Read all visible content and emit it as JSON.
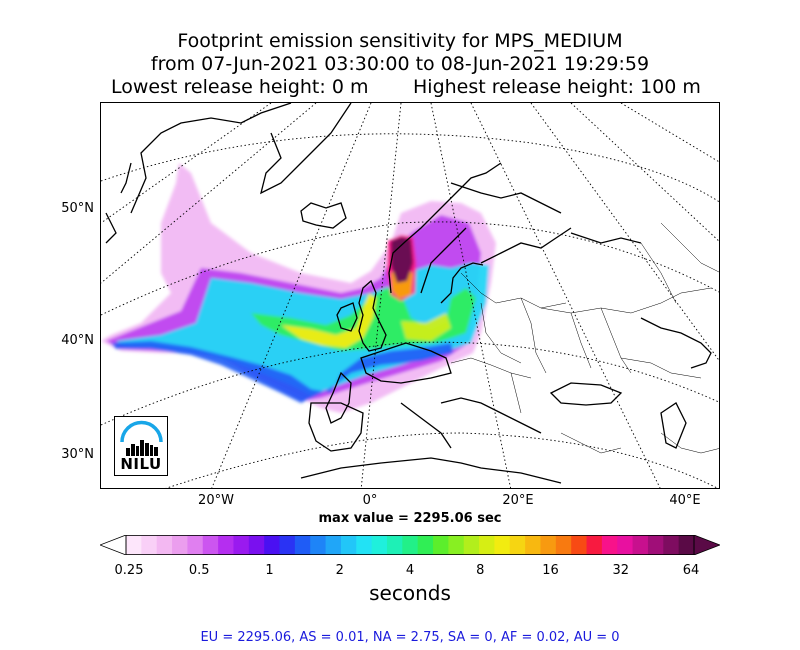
{
  "title": {
    "line1": "Footprint emission sensitivity for MPS_MEDIUM",
    "line2": "from 07-Jun-2021 03:30:00 to 08-Jun-2021 19:29:59",
    "lowest_release": "Lowest release height: 0 m",
    "highest_release": "Highest release height: 100 m"
  },
  "map": {
    "lat_labels": [
      "50°N",
      "40°N",
      "30°N"
    ],
    "lon_labels": [
      "20°W",
      "0°",
      "20°E",
      "40°E"
    ],
    "logo_text": "NILU"
  },
  "max_value": "max value = 2295.06 sec",
  "colorbar": {
    "ticks": [
      "0.25",
      "0.5",
      "1",
      "2",
      "4",
      "8",
      "16",
      "32",
      "64"
    ],
    "unit": "seconds",
    "colors": [
      "#fde6fb",
      "#f9d0f7",
      "#f3b8f2",
      "#eb9eee",
      "#e07ff0",
      "#cc55f0",
      "#b52ef0",
      "#9a1aef",
      "#7a10ef",
      "#4a10f2",
      "#2a33f4",
      "#1f5cf6",
      "#1e84f7",
      "#20a6f8",
      "#22c6f8",
      "#22e2f5",
      "#1ff0dc",
      "#1ef0b6",
      "#22f088",
      "#30ee55",
      "#5cee2c",
      "#88ef22",
      "#b2ee1c",
      "#d6ee14",
      "#f2ec10",
      "#f6d512",
      "#f8b810",
      "#f89a10",
      "#f87a10",
      "#f84a14",
      "#f81a40",
      "#f8128a",
      "#e810a0",
      "#c8108e",
      "#a00e78",
      "#7e0c60",
      "#5a0a46"
    ],
    "left_cap_color": "#ffffff",
    "right_cap_color": "#5a0a46"
  },
  "regions_text": "EU = 2295.06,  AS = 0.01,  NA = 2.75,  SA = 0,  AF = 0.02,  AU = 0"
}
